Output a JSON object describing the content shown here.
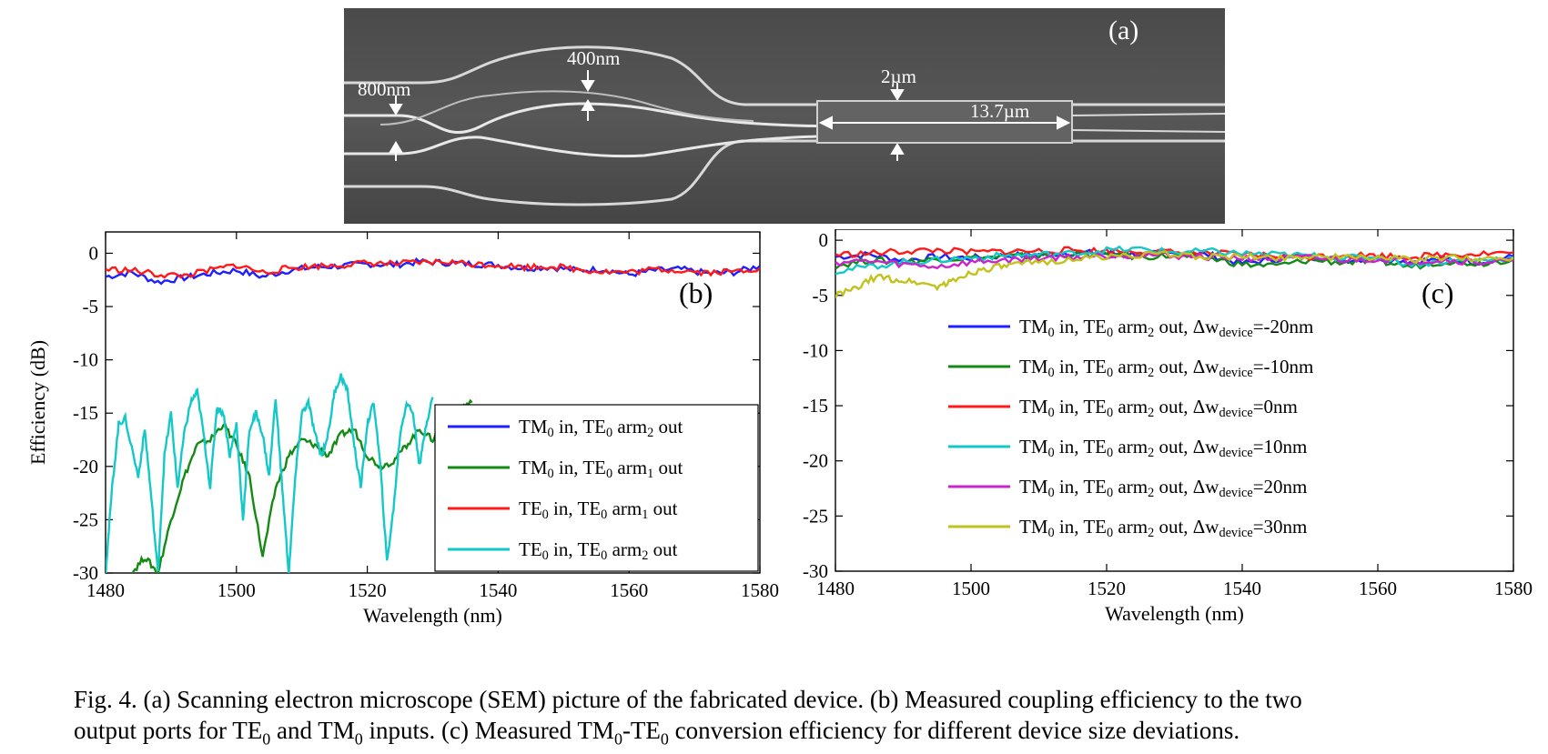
{
  "sem": {
    "panel_label": "(a)",
    "labels": {
      "w_in": "800nm",
      "gap": "400nm",
      "w_mmi": "2µm",
      "l_mmi": "13.7µm"
    }
  },
  "caption": {
    "prefix": "Fig. 4. (a) Scanning electron microscope (SEM) picture of the  fabricated device. (b) Measured coupling efficiency to the two",
    "l2_a": "output ports for TE",
    "l2_sub1": "0",
    "l2_b": " and TM",
    "l2_sub2": "0",
    "l2_c": " inputs. (c) Measured TM",
    "l2_sub3": "0",
    "l2_d": "-TE",
    "l2_sub4": "0",
    "l2_e": " conversion efficiency for different device size deviations."
  },
  "chart_data": [
    {
      "type": "line",
      "panel_label": "(b)",
      "xlabel": "Wavelength (nm)",
      "ylabel": "Efficiency (dB)",
      "xlim": [
        1480,
        1580
      ],
      "ylim": [
        -30,
        2
      ],
      "xticks": [
        1480,
        1500,
        1520,
        1540,
        1560,
        1580
      ],
      "yticks": [
        0,
        -5,
        -10,
        -15,
        -20,
        -25,
        -30
      ],
      "legend_position": "lower-right",
      "series": [
        {
          "legend": [
            "TM",
            "0",
            " in, TE",
            "0",
            " arm",
            "2",
            " out"
          ],
          "color": "#1f1fff",
          "x": [
            1480,
            1484,
            1488,
            1492,
            1496,
            1500,
            1504,
            1508,
            1512,
            1516,
            1520,
            1524,
            1528,
            1532,
            1536,
            1540,
            1544,
            1548,
            1552,
            1556,
            1560,
            1564,
            1568,
            1572,
            1576,
            1580
          ],
          "y": [
            -2.2,
            -1.8,
            -2.7,
            -2.3,
            -1.9,
            -1.6,
            -2.2,
            -1.6,
            -1.3,
            -1.2,
            -1.0,
            -1.1,
            -0.8,
            -0.9,
            -1.0,
            -1.1,
            -1.4,
            -1.3,
            -1.6,
            -1.5,
            -2.0,
            -1.6,
            -1.5,
            -1.9,
            -1.8,
            -1.2
          ]
        },
        {
          "legend": [
            "TM",
            "0",
            " in, TE",
            "0",
            " arm",
            "1",
            " out"
          ],
          "color": "#138a13",
          "x": [
            1484,
            1486,
            1488,
            1490,
            1492,
            1494,
            1496,
            1498,
            1500,
            1502,
            1504,
            1506,
            1508,
            1510,
            1512,
            1514,
            1516,
            1518,
            1520,
            1522,
            1524,
            1526,
            1528,
            1530,
            1532,
            1534,
            1536
          ],
          "y": [
            -30,
            -28.5,
            -30,
            -25,
            -21,
            -18,
            -17.5,
            -16,
            -18,
            -21,
            -28.5,
            -22,
            -19,
            -17.5,
            -18,
            -19,
            -17,
            -16.5,
            -19,
            -20,
            -19.5,
            -18,
            -16.5,
            -17.5,
            -15,
            -14.5,
            -14
          ]
        },
        {
          "legend": [
            "TE",
            "0",
            " in, TE",
            "0",
            " arm",
            "1",
            " out"
          ],
          "color": "#ff1a1a",
          "x": [
            1480,
            1484,
            1488,
            1492,
            1496,
            1500,
            1504,
            1508,
            1512,
            1516,
            1520,
            1524,
            1528,
            1532,
            1536,
            1540,
            1544,
            1548,
            1552,
            1556,
            1560,
            1564,
            1568,
            1572,
            1576,
            1580
          ],
          "y": [
            -1.5,
            -1.6,
            -2.0,
            -2.1,
            -1.6,
            -1.1,
            -1.8,
            -1.4,
            -1.2,
            -1.1,
            -0.9,
            -1.0,
            -0.9,
            -0.8,
            -1.0,
            -1.1,
            -1.3,
            -1.2,
            -1.5,
            -1.7,
            -1.8,
            -1.5,
            -1.6,
            -1.8,
            -1.7,
            -1.4
          ]
        },
        {
          "legend": [
            "TE",
            "0",
            " in, TE",
            "0",
            " arm",
            "2",
            " out"
          ],
          "color": "#14c8c8",
          "x": [
            1480,
            1481,
            1482,
            1483,
            1485,
            1486,
            1487,
            1488,
            1489,
            1490,
            1491,
            1492,
            1493,
            1494,
            1495,
            1496,
            1497,
            1498,
            1499,
            1500,
            1501,
            1502,
            1503,
            1504,
            1505,
            1506,
            1507,
            1508,
            1509,
            1510,
            1511,
            1512,
            1513,
            1514,
            1515,
            1516,
            1517,
            1518,
            1519,
            1520,
            1521,
            1522,
            1523,
            1524,
            1525,
            1526,
            1527,
            1528,
            1529,
            1530
          ],
          "y": [
            -30,
            -22,
            -16,
            -15.5,
            -21,
            -16.5,
            -23,
            -30,
            -19,
            -15,
            -22,
            -17,
            -14,
            -13,
            -17,
            -22,
            -14.5,
            -15,
            -19,
            -16,
            -25,
            -16.5,
            -15,
            -17,
            -21,
            -13.5,
            -22,
            -30,
            -21,
            -15,
            -14,
            -17,
            -19,
            -17,
            -13,
            -11.5,
            -13,
            -18,
            -22,
            -16,
            -14,
            -20,
            -29,
            -24,
            -17,
            -14,
            -15,
            -20,
            -16,
            -13.5
          ]
        }
      ]
    },
    {
      "type": "line",
      "panel_label": "(c)",
      "xlabel": "Wavelength (nm)",
      "ylabel": "",
      "xlim": [
        1480,
        1580
      ],
      "ylim": [
        -30,
        1
      ],
      "xticks": [
        1480,
        1500,
        1520,
        1540,
        1560,
        1580
      ],
      "yticks": [
        0,
        -5,
        -10,
        -15,
        -20,
        -25,
        -30
      ],
      "legend_position": "center",
      "series": [
        {
          "legend": [
            "TM",
            "0",
            " in, TE",
            "0",
            " arm",
            "2",
            " out, Δw",
            "device",
            "=-20nm"
          ],
          "color": "#1f1fff",
          "x": [
            1480,
            1485,
            1490,
            1495,
            1500,
            1505,
            1510,
            1515,
            1520,
            1525,
            1530,
            1535,
            1540,
            1545,
            1550,
            1555,
            1560,
            1565,
            1570,
            1575,
            1580
          ],
          "y": [
            -1.5,
            -1.3,
            -1.8,
            -1.5,
            -1.6,
            -1.4,
            -1.3,
            -1.1,
            -1.2,
            -1.3,
            -1.2,
            -1.3,
            -2.1,
            -1.7,
            -1.5,
            -1.8,
            -1.6,
            -1.9,
            -1.7,
            -2.0,
            -1.5
          ]
        },
        {
          "legend": [
            "TM",
            "0",
            " in, TE",
            "0",
            " arm",
            "2",
            " out, Δw",
            "device",
            "=-10nm"
          ],
          "color": "#138a13",
          "x": [
            1480,
            1485,
            1490,
            1495,
            1500,
            1505,
            1510,
            1515,
            1520,
            1525,
            1530,
            1535,
            1540,
            1545,
            1550,
            1555,
            1560,
            1565,
            1570,
            1575,
            1580
          ],
          "y": [
            -2.3,
            -1.8,
            -2.0,
            -1.7,
            -1.6,
            -1.5,
            -1.4,
            -1.3,
            -1.3,
            -1.5,
            -1.4,
            -1.6,
            -2.2,
            -2.3,
            -1.8,
            -2.0,
            -1.9,
            -2.4,
            -1.9,
            -2.1,
            -1.7
          ]
        },
        {
          "legend": [
            "TM",
            "0",
            " in, TE",
            "0",
            " arm",
            "2",
            " out, Δw",
            "device",
            "=0nm"
          ],
          "color": "#ff1a1a",
          "x": [
            1480,
            1485,
            1490,
            1495,
            1500,
            1505,
            1510,
            1515,
            1520,
            1525,
            1530,
            1535,
            1540,
            1545,
            1550,
            1555,
            1560,
            1565,
            1570,
            1575,
            1580
          ],
          "y": [
            -1.3,
            -1.2,
            -1.0,
            -0.9,
            -1.1,
            -1.0,
            -1.0,
            -0.9,
            -1.0,
            -1.0,
            -1.1,
            -1.2,
            -1.3,
            -1.4,
            -1.5,
            -1.3,
            -1.4,
            -1.5,
            -1.3,
            -1.2,
            -1.1
          ]
        },
        {
          "legend": [
            "TM",
            "0",
            " in, TE",
            "0",
            " arm",
            "2",
            " out, Δw",
            "device",
            "=10nm"
          ],
          "color": "#14c8c8",
          "x": [
            1480,
            1485,
            1490,
            1495,
            1500,
            1505,
            1510,
            1515,
            1520,
            1525,
            1530,
            1535,
            1540,
            1545,
            1550,
            1555,
            1560,
            1565,
            1570,
            1575,
            1580
          ],
          "y": [
            -2.8,
            -2.4,
            -2.0,
            -1.8,
            -1.6,
            -1.4,
            -1.3,
            -1.2,
            -0.9,
            -0.8,
            -1.1,
            -1.0,
            -1.2,
            -1.3,
            -1.4,
            -1.6,
            -1.5,
            -2.2,
            -1.9,
            -1.8,
            -1.6
          ]
        },
        {
          "legend": [
            "TM",
            "0",
            " in, TE",
            "0",
            " arm",
            "2",
            " out, Δw",
            "device",
            "=20nm"
          ],
          "color": "#cc22cc",
          "x": [
            1480,
            1485,
            1490,
            1495,
            1500,
            1505,
            1510,
            1515,
            1520,
            1525,
            1530,
            1535,
            1540,
            1545,
            1550,
            1555,
            1560,
            1565,
            1570,
            1575,
            1580
          ],
          "y": [
            -2.0,
            -1.9,
            -2.2,
            -2.4,
            -2.0,
            -1.8,
            -1.6,
            -1.5,
            -1.4,
            -1.3,
            -1.4,
            -1.5,
            -1.6,
            -1.7,
            -1.6,
            -1.8,
            -1.7,
            -1.9,
            -1.8,
            -2.0,
            -1.9
          ]
        },
        {
          "legend": [
            "TM",
            "0",
            " in, TE",
            "0",
            " arm",
            "2",
            " out, Δw",
            "device",
            "=30nm"
          ],
          "color": "#c2c21e",
          "x": [
            1480,
            1483,
            1486,
            1489,
            1492,
            1495,
            1497,
            1500,
            1503,
            1506,
            1510,
            1515,
            1520,
            1525,
            1530,
            1535,
            1540,
            1545,
            1550,
            1555,
            1560,
            1565,
            1570,
            1575,
            1580
          ],
          "y": [
            -5.0,
            -4.4,
            -3.3,
            -3.6,
            -3.8,
            -4.2,
            -3.8,
            -2.9,
            -2.5,
            -2.3,
            -2.0,
            -1.7,
            -1.5,
            -1.3,
            -1.3,
            -1.5,
            -1.5,
            -1.6,
            -1.4,
            -1.6,
            -1.5,
            -1.8,
            -1.6,
            -1.7,
            -1.6
          ]
        }
      ]
    }
  ]
}
